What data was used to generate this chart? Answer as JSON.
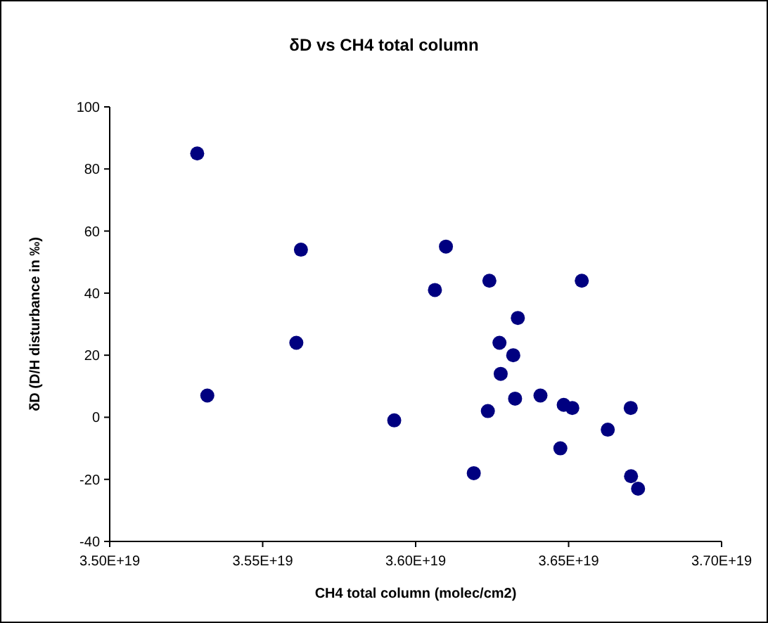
{
  "chart_data": {
    "type": "scatter",
    "title": "δD vs CH4 total column",
    "xlabel": "CH4 total column (molec/cm2)",
    "ylabel": "δD (D/H disturbance in ‰)",
    "x": [
      3.5286e+19,
      3.5625e+19,
      3.6099e+19,
      3.6063e+19,
      3.561e+19,
      3.5319e+19,
      3.593e+19,
      3.6241e+19,
      3.6543e+19,
      3.6334e+19,
      3.6274e+19,
      3.6319e+19,
      3.6278e+19,
      3.6325e+19,
      3.6408e+19,
      3.6484e+19,
      3.6512e+19,
      3.6703e+19,
      3.6236e+19,
      3.6628e+19,
      3.6473e+19,
      3.619e+19,
      3.6704e+19,
      3.6727e+19
    ],
    "series": [
      {
        "color": "#000080",
        "values": [
          85,
          54,
          55,
          41,
          24,
          7,
          -1,
          44,
          44,
          32,
          24,
          20,
          14,
          6,
          7,
          4,
          3,
          3,
          2,
          -4,
          -10,
          -18,
          -19,
          -23
        ]
      }
    ],
    "marker": "circle",
    "xlim": [
      3.5e+19,
      3.7e+19
    ],
    "xticks": [
      {
        "value": 3.5e+19,
        "label": "3.50E+19"
      },
      {
        "value": 3.55e+19,
        "label": "3.55E+19"
      },
      {
        "value": 3.6e+19,
        "label": "3.60E+19"
      },
      {
        "value": 3.65e+19,
        "label": "3.65E+19"
      },
      {
        "value": 3.7e+19,
        "label": "3.70E+19"
      }
    ],
    "ylim": [
      -40,
      100
    ],
    "yticks": [
      -40,
      -20,
      0,
      20,
      40,
      60,
      80,
      100
    ]
  }
}
